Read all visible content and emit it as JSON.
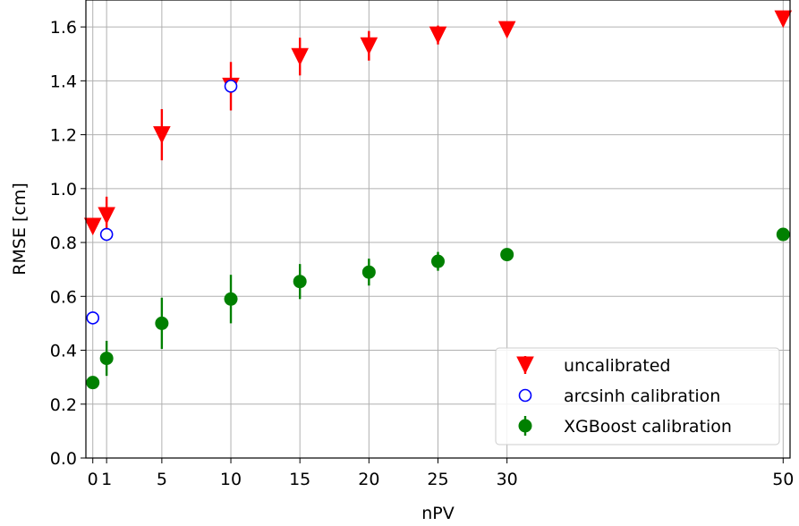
{
  "chart_data": {
    "type": "scatter",
    "xlabel": "nPV",
    "ylabel": "RMSE [cm]",
    "xlim": [
      -0.5,
      50.5
    ],
    "ylim": [
      0.0,
      1.7
    ],
    "xticks": [
      0,
      1,
      5,
      10,
      15,
      20,
      25,
      30,
      50
    ],
    "xtick_labels": [
      "0",
      "1",
      "5",
      "10",
      "15",
      "20",
      "25",
      "30",
      "50"
    ],
    "yticks": [
      0.0,
      0.2,
      0.4,
      0.6,
      0.8,
      1.0,
      1.2,
      1.4,
      1.6
    ],
    "ytick_labels": [
      "0.0",
      "0.2",
      "0.4",
      "0.6",
      "0.8",
      "1.0",
      "1.2",
      "1.4",
      "1.6"
    ],
    "grid": true,
    "legend_position": "bottom-right",
    "series": [
      {
        "name": "uncalibrated",
        "marker": "triangle-down",
        "color": "#ff0000",
        "x": [
          0,
          1,
          5,
          10,
          15,
          20,
          25,
          30,
          50
        ],
        "y": [
          0.86,
          0.9,
          1.2,
          1.38,
          1.49,
          1.53,
          1.57,
          1.59,
          1.63
        ],
        "yerr": [
          0.02,
          0.07,
          0.095,
          0.09,
          0.07,
          0.055,
          0.035,
          0.02,
          0.02
        ]
      },
      {
        "name": "arcsinh calibration",
        "marker": "circle-open",
        "color": "#0000ff",
        "x": [
          0,
          1,
          10
        ],
        "y": [
          0.52,
          0.83,
          1.38
        ],
        "yerr": [
          0,
          0,
          0
        ]
      },
      {
        "name": "XGBoost calibration",
        "marker": "circle-filled",
        "color": "#008000",
        "x": [
          0,
          1,
          5,
          10,
          15,
          20,
          25,
          30,
          50
        ],
        "y": [
          0.28,
          0.37,
          0.5,
          0.59,
          0.655,
          0.69,
          0.73,
          0.755,
          0.83
        ],
        "yerr": [
          0.015,
          0.065,
          0.095,
          0.09,
          0.065,
          0.05,
          0.035,
          0.02,
          0.015
        ]
      }
    ]
  }
}
